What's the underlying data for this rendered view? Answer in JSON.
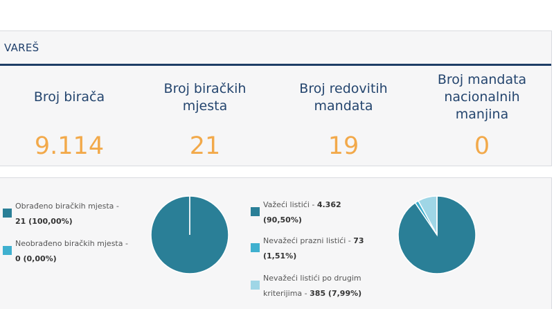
{
  "municipality": "VAREŠ",
  "stats": [
    {
      "label_lines": [
        "Broj birača"
      ],
      "value": "9.114"
    },
    {
      "label_lines": [
        "Broj biračkih",
        "mjesta"
      ],
      "value": "21"
    },
    {
      "label_lines": [
        "Broj redovitih",
        "mandata"
      ],
      "value": "19"
    },
    {
      "label_lines": [
        "Broj mandata",
        "nacionalnih",
        "manjina"
      ],
      "value": "0"
    }
  ],
  "stations_legend": [
    {
      "text": "Obrađeno biračkih mjesta -",
      "count": "21 (100,00%)",
      "color": "#2a7f97"
    },
    {
      "text": "Neobrađeno biračkih mjesta -",
      "count": "0 (0,00%)",
      "color": "#3fb0cf"
    }
  ],
  "ballots_legend": [
    {
      "text": "Važeći listići - ",
      "count": "4.362",
      "count2": "(90,50%)",
      "color": "#2a7f97"
    },
    {
      "text": "Nevažeći prazni listići - ",
      "count": "73",
      "count2": "(1,51%)",
      "color": "#3fb0cf"
    },
    {
      "text": "Nevažeći listići po drugim",
      "text2": "kriterijima - ",
      "count": "385 (7,99%)",
      "color": "#9fd6e6"
    }
  ],
  "chart_data": [
    {
      "type": "pie",
      "slices": [
        {
          "label": "Obrađeno biračkih mjesta",
          "value": 100.0,
          "color": "#2a7f97"
        },
        {
          "label": "Neobrađeno biračkih mjesta",
          "value": 0.0,
          "color": "#3fb0cf"
        }
      ]
    },
    {
      "type": "pie",
      "slices": [
        {
          "label": "Važeći listići",
          "value": 90.5,
          "color": "#2a7f97"
        },
        {
          "label": "Nevažeći prazni listići",
          "value": 1.51,
          "color": "#3fb0cf"
        },
        {
          "label": "Nevažeći listići po drugim kriterijima",
          "value": 7.99,
          "color": "#9fd6e6"
        }
      ]
    }
  ]
}
